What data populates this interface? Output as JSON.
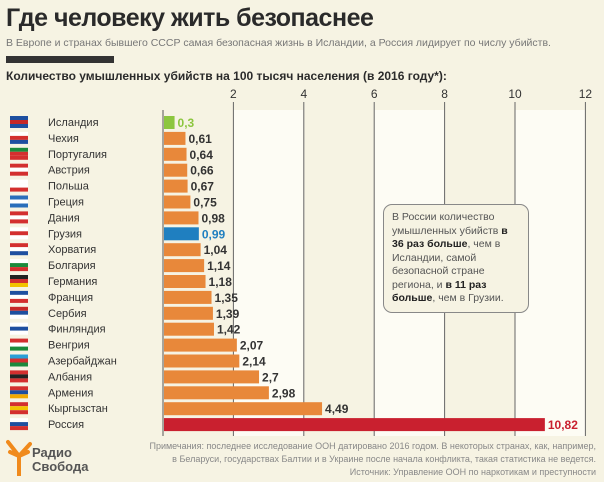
{
  "title": "Где человеку жить безопаснее",
  "subtitle": "В Европе и странах бывшего СССР самая безопасная жизнь в Исландии, а Россия лидирует по числу убийств.",
  "chart_title": "Количество умышленных убийств на 100 тысяч населения (в 2016 году*):",
  "chart_data": {
    "type": "bar",
    "orientation": "horizontal",
    "title": "Количество умышленных убийств на 100 тысяч населения (в 2016 году*):",
    "xlim": [
      0,
      12
    ],
    "xticks": [
      2,
      4,
      6,
      8,
      10,
      12
    ],
    "categories": [
      "Исландия",
      "Чехия",
      "Португалия",
      "Австрия",
      "Польша",
      "Греция",
      "Дания",
      "Грузия",
      "Хорватия",
      "Болгария",
      "Германия",
      "Франция",
      "Сербия",
      "Финляндия",
      "Венгрия",
      "Азербайджан",
      "Албания",
      "Армения",
      "Кыргызстан",
      "Россия"
    ],
    "values": [
      0.3,
      0.61,
      0.64,
      0.66,
      0.67,
      0.75,
      0.98,
      0.99,
      1.04,
      1.14,
      1.18,
      1.35,
      1.39,
      1.42,
      2.07,
      2.14,
      2.7,
      2.98,
      4.49,
      10.82
    ],
    "labels": [
      "0,3",
      "0,61",
      "0,64",
      "0,66",
      "0,67",
      "0,75",
      "0,98",
      "0,99",
      "1,04",
      "1,14",
      "1,18",
      "1,35",
      "1,39",
      "1,42",
      "2,07",
      "2,14",
      "2,7",
      "2,98",
      "4,49",
      "10,82"
    ],
    "colors": {
      "default": "#e8883a",
      "Исландия": "#8cc63f",
      "Грузия": "#1f7fc0",
      "Россия": "#c9202f"
    }
  },
  "flags": [
    [
      "#1d4fa0",
      "#c62828",
      "#1d4fa0"
    ],
    [
      "#ffffff",
      "#d32f2f",
      "#1e4fa0"
    ],
    [
      "#1b8a3c",
      "#d32f2f",
      "#d32f2f"
    ],
    [
      "#d32f2f",
      "#ffffff",
      "#d32f2f"
    ],
    [
      "#ffffff",
      "#ffffff",
      "#d32f2f"
    ],
    [
      "#2a6ebb",
      "#ffffff",
      "#2a6ebb"
    ],
    [
      "#d32f2f",
      "#ffffff",
      "#d32f2f"
    ],
    [
      "#ffffff",
      "#d32f2f",
      "#ffffff"
    ],
    [
      "#d32f2f",
      "#ffffff",
      "#1e4fa0"
    ],
    [
      "#ffffff",
      "#1b8a3c",
      "#d32f2f"
    ],
    [
      "#222222",
      "#d32f2f",
      "#f2c200"
    ],
    [
      "#1e4fa0",
      "#ffffff",
      "#d32f2f"
    ],
    [
      "#c62828",
      "#1e4fa0",
      "#ffffff"
    ],
    [
      "#ffffff",
      "#1e4fa0",
      "#ffffff"
    ],
    [
      "#d32f2f",
      "#ffffff",
      "#1b8a3c"
    ],
    [
      "#2a9fd6",
      "#d32f2f",
      "#1b8a3c"
    ],
    [
      "#d32f2f",
      "#222222",
      "#d32f2f"
    ],
    [
      "#d32f2f",
      "#1e4fa0",
      "#f2a900"
    ],
    [
      "#d32f2f",
      "#f2c200",
      "#d32f2f"
    ],
    [
      "#ffffff",
      "#1e4fa0",
      "#d32f2f"
    ]
  ],
  "note": {
    "p1": "В России количество умышленных убийств ",
    "b1": "в 36 раз больше",
    "p2": ", чем в Исландии, самой безопасной стране региона, и ",
    "b2": "в 11 раз больше",
    "p3": ", чем в Грузии."
  },
  "footer": {
    "line1": "Примечания: последнее исследование ООН датировано 2016 годом. В некоторых странах, как, например,",
    "line2": "в Беларуси, государствах Балтии и в Украине после начала конфликта, такая статистика не ведется.",
    "line3": "Источник: Управление ООН по наркотикам и преступности"
  },
  "logo": {
    "line1": "Радио",
    "line2": "Свобода",
    "color": "#f08a1c"
  }
}
